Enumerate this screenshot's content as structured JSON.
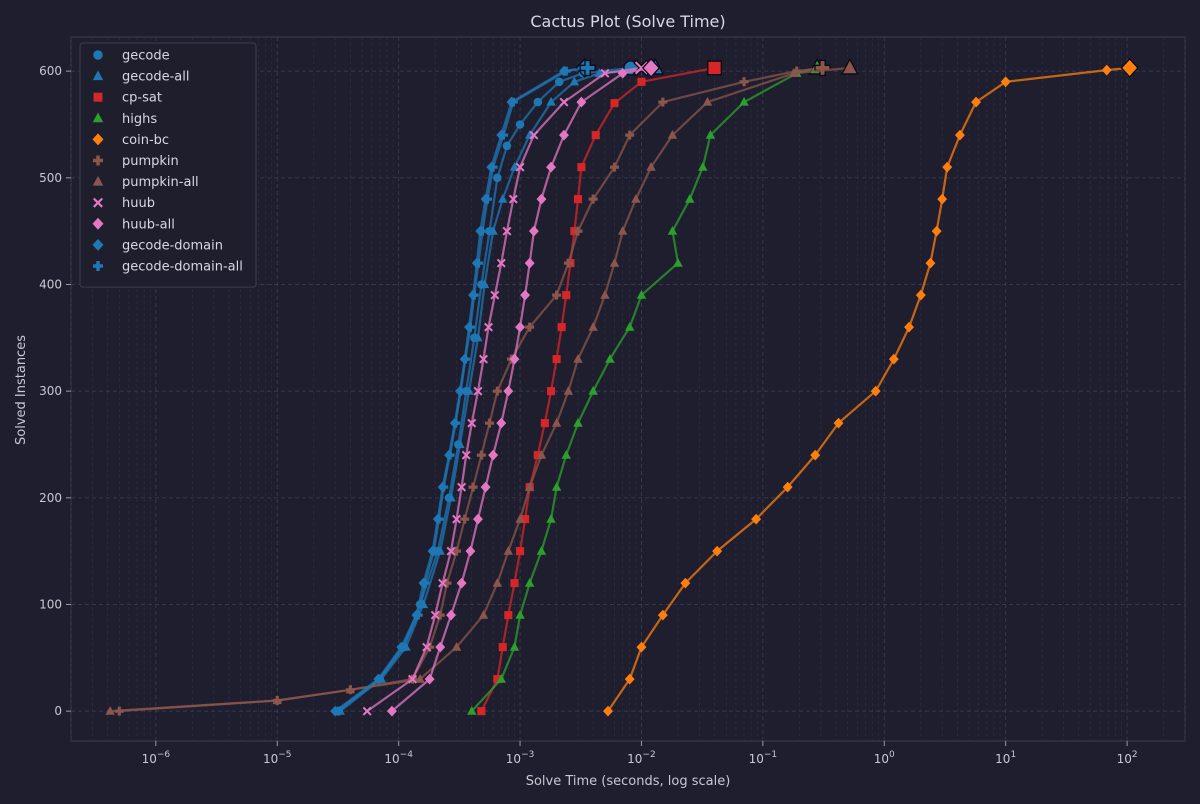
{
  "chart_data": {
    "type": "line",
    "title": "Cactus Plot (Solve Time)",
    "xlabel": "Solve Time (seconds, log scale)",
    "ylabel": "Solved Instances",
    "xscale": "log",
    "xlim": [
      2e-07,
      300
    ],
    "ylim": [
      -28,
      632
    ],
    "xticks": [
      {
        "value": 1e-06,
        "base": "10",
        "exp": "−6"
      },
      {
        "value": 1e-05,
        "base": "10",
        "exp": "−5"
      },
      {
        "value": 0.0001,
        "base": "10",
        "exp": "−4"
      },
      {
        "value": 0.001,
        "base": "10",
        "exp": "−3"
      },
      {
        "value": 0.01,
        "base": "10",
        "exp": "−2"
      },
      {
        "value": 0.1,
        "base": "10",
        "exp": "−1"
      },
      {
        "value": 1,
        "base": "10",
        "exp": "0"
      },
      {
        "value": 10,
        "base": "10",
        "exp": "1"
      },
      {
        "value": 100,
        "base": "10",
        "exp": "2"
      }
    ],
    "yticks": [
      0,
      100,
      200,
      300,
      400,
      500,
      600
    ],
    "grid": true,
    "legend_position": "top-left",
    "series": [
      {
        "name": "gecode",
        "color": "#1f77b4",
        "marker": "circle",
        "points": [
          [
            3.1e-05,
            0
          ],
          [
            7e-05,
            30
          ],
          [
            0.00011,
            60
          ],
          [
            0.00015,
            100
          ],
          [
            0.00021,
            150
          ],
          [
            0.00026,
            200
          ],
          [
            0.00031,
            250
          ],
          [
            0.00036,
            300
          ],
          [
            0.00042,
            350
          ],
          [
            0.00048,
            400
          ],
          [
            0.00056,
            450
          ],
          [
            0.00065,
            500
          ],
          [
            0.00078,
            530
          ],
          [
            0.001,
            550
          ],
          [
            0.0014,
            571
          ],
          [
            0.0021,
            590
          ],
          [
            0.0033,
            598
          ],
          [
            0.0082,
            603
          ]
        ]
      },
      {
        "name": "gecode-all",
        "color": "#1f77b4",
        "marker": "triangle",
        "points": [
          [
            3.3e-05,
            0
          ],
          [
            7.2e-05,
            30
          ],
          [
            0.000115,
            60
          ],
          [
            0.00016,
            100
          ],
          [
            0.00022,
            150
          ],
          [
            0.00027,
            200
          ],
          [
            0.00032,
            250
          ],
          [
            0.00038,
            300
          ],
          [
            0.00045,
            350
          ],
          [
            0.00051,
            400
          ],
          [
            0.0006,
            450
          ],
          [
            0.00072,
            480
          ],
          [
            0.0009,
            510
          ],
          [
            0.0012,
            540
          ],
          [
            0.0018,
            571
          ],
          [
            0.0028,
            590
          ],
          [
            0.0045,
            598
          ],
          [
            0.013,
            603
          ]
        ]
      },
      {
        "name": "cp-sat",
        "color": "#d62728",
        "marker": "square",
        "points": [
          [
            0.00048,
            0
          ],
          [
            0.00065,
            30
          ],
          [
            0.00072,
            60
          ],
          [
            0.0008,
            90
          ],
          [
            0.0009,
            120
          ],
          [
            0.001,
            150
          ],
          [
            0.0011,
            180
          ],
          [
            0.0012,
            210
          ],
          [
            0.0014,
            240
          ],
          [
            0.0016,
            270
          ],
          [
            0.0018,
            300
          ],
          [
            0.002,
            330
          ],
          [
            0.0022,
            360
          ],
          [
            0.0024,
            390
          ],
          [
            0.0026,
            420
          ],
          [
            0.0028,
            450
          ],
          [
            0.003,
            480
          ],
          [
            0.0032,
            510
          ],
          [
            0.0042,
            540
          ],
          [
            0.006,
            570
          ],
          [
            0.01,
            590
          ],
          [
            0.04,
            603
          ]
        ]
      },
      {
        "name": "highs",
        "color": "#2ca02c",
        "marker": "triangle",
        "points": [
          [
            0.0004,
            0
          ],
          [
            0.0007,
            30
          ],
          [
            0.0009,
            60
          ],
          [
            0.001,
            90
          ],
          [
            0.0012,
            120
          ],
          [
            0.0015,
            150
          ],
          [
            0.0018,
            180
          ],
          [
            0.002,
            210
          ],
          [
            0.0024,
            240
          ],
          [
            0.003,
            270
          ],
          [
            0.004,
            300
          ],
          [
            0.0055,
            330
          ],
          [
            0.008,
            360
          ],
          [
            0.01,
            390
          ],
          [
            0.02,
            420
          ],
          [
            0.018,
            450
          ],
          [
            0.025,
            480
          ],
          [
            0.032,
            510
          ],
          [
            0.037,
            540
          ],
          [
            0.07,
            571
          ],
          [
            0.19,
            598
          ],
          [
            0.28,
            603
          ]
        ]
      },
      {
        "name": "coin-bc",
        "color": "#ff7f0e",
        "marker": "diamond",
        "points": [
          [
            0.0053,
            0
          ],
          [
            0.008,
            30
          ],
          [
            0.01,
            60
          ],
          [
            0.015,
            90
          ],
          [
            0.023,
            120
          ],
          [
            0.042,
            150
          ],
          [
            0.088,
            180
          ],
          [
            0.16,
            210
          ],
          [
            0.27,
            240
          ],
          [
            0.42,
            270
          ],
          [
            0.85,
            300
          ],
          [
            1.2,
            330
          ],
          [
            1.6,
            360
          ],
          [
            2.0,
            390
          ],
          [
            2.4,
            420
          ],
          [
            2.7,
            450
          ],
          [
            3.0,
            480
          ],
          [
            3.3,
            510
          ],
          [
            4.2,
            540
          ],
          [
            5.7,
            571
          ],
          [
            10.0,
            590
          ],
          [
            68.0,
            601
          ],
          [
            105.0,
            603
          ]
        ]
      },
      {
        "name": "pumpkin",
        "color": "#8c564b",
        "marker": "plus",
        "points": [
          [
            5e-07,
            0
          ],
          [
            1e-05,
            10
          ],
          [
            4e-05,
            20
          ],
          [
            0.00013,
            30
          ],
          [
            0.00018,
            60
          ],
          [
            0.00022,
            90
          ],
          [
            0.00025,
            120
          ],
          [
            0.0003,
            150
          ],
          [
            0.00035,
            180
          ],
          [
            0.00041,
            210
          ],
          [
            0.00048,
            240
          ],
          [
            0.00056,
            270
          ],
          [
            0.00065,
            300
          ],
          [
            0.00085,
            330
          ],
          [
            0.0012,
            360
          ],
          [
            0.002,
            390
          ],
          [
            0.0025,
            420
          ],
          [
            0.003,
            450
          ],
          [
            0.004,
            480
          ],
          [
            0.006,
            510
          ],
          [
            0.008,
            540
          ],
          [
            0.015,
            571
          ],
          [
            0.07,
            590
          ],
          [
            0.19,
            600
          ],
          [
            0.31,
            603
          ]
        ]
      },
      {
        "name": "pumpkin-all",
        "color": "#8c564b",
        "marker": "triangle",
        "points": [
          [
            4.2e-07,
            0
          ],
          [
            1e-05,
            10
          ],
          [
            4e-05,
            20
          ],
          [
            0.00015,
            30
          ],
          [
            0.0003,
            60
          ],
          [
            0.0005,
            90
          ],
          [
            0.00065,
            120
          ],
          [
            0.0008,
            150
          ],
          [
            0.001,
            180
          ],
          [
            0.0012,
            210
          ],
          [
            0.0015,
            240
          ],
          [
            0.002,
            270
          ],
          [
            0.0025,
            300
          ],
          [
            0.003,
            330
          ],
          [
            0.004,
            360
          ],
          [
            0.005,
            390
          ],
          [
            0.006,
            420
          ],
          [
            0.007,
            450
          ],
          [
            0.009,
            480
          ],
          [
            0.012,
            510
          ],
          [
            0.018,
            540
          ],
          [
            0.035,
            571
          ],
          [
            0.18,
            598
          ],
          [
            0.52,
            603
          ]
        ]
      },
      {
        "name": "huub",
        "color": "#e377c2",
        "marker": "x",
        "points": [
          [
            5.5e-05,
            0
          ],
          [
            0.00013,
            30
          ],
          [
            0.00017,
            60
          ],
          [
            0.0002,
            90
          ],
          [
            0.00023,
            120
          ],
          [
            0.00027,
            150
          ],
          [
            0.0003,
            180
          ],
          [
            0.00033,
            210
          ],
          [
            0.00036,
            240
          ],
          [
            0.0004,
            270
          ],
          [
            0.00045,
            300
          ],
          [
            0.0005,
            330
          ],
          [
            0.00055,
            360
          ],
          [
            0.00062,
            390
          ],
          [
            0.0007,
            420
          ],
          [
            0.00078,
            450
          ],
          [
            0.00088,
            480
          ],
          [
            0.001,
            510
          ],
          [
            0.0013,
            540
          ],
          [
            0.0023,
            571
          ],
          [
            0.005,
            598
          ],
          [
            0.01,
            603
          ]
        ]
      },
      {
        "name": "huub-all",
        "color": "#e377c2",
        "marker": "diamond",
        "points": [
          [
            8.8e-05,
            0
          ],
          [
            0.00018,
            30
          ],
          [
            0.00022,
            60
          ],
          [
            0.00027,
            90
          ],
          [
            0.00033,
            120
          ],
          [
            0.00039,
            150
          ],
          [
            0.00045,
            180
          ],
          [
            0.00052,
            210
          ],
          [
            0.0006,
            240
          ],
          [
            0.0007,
            270
          ],
          [
            0.0008,
            300
          ],
          [
            0.0009,
            330
          ],
          [
            0.001,
            360
          ],
          [
            0.0011,
            390
          ],
          [
            0.0012,
            420
          ],
          [
            0.0013,
            450
          ],
          [
            0.0015,
            480
          ],
          [
            0.0018,
            510
          ],
          [
            0.0023,
            540
          ],
          [
            0.0032,
            571
          ],
          [
            0.007,
            598
          ],
          [
            0.012,
            603
          ]
        ]
      },
      {
        "name": "gecode-domain",
        "color": "#1f77b4",
        "marker": "diamond",
        "points": [
          [
            3e-05,
            0
          ],
          [
            6.8e-05,
            30
          ],
          [
            0.000105,
            60
          ],
          [
            0.00014,
            90
          ],
          [
            0.00016,
            120
          ],
          [
            0.00019,
            150
          ],
          [
            0.00021,
            180
          ],
          [
            0.00023,
            210
          ],
          [
            0.00026,
            240
          ],
          [
            0.00029,
            270
          ],
          [
            0.00032,
            300
          ],
          [
            0.00035,
            330
          ],
          [
            0.00038,
            360
          ],
          [
            0.00041,
            390
          ],
          [
            0.00044,
            420
          ],
          [
            0.00047,
            450
          ],
          [
            0.00052,
            480
          ],
          [
            0.00058,
            510
          ],
          [
            0.0007,
            540
          ],
          [
            0.00085,
            571
          ],
          [
            0.0023,
            600
          ],
          [
            0.0034,
            603
          ]
        ]
      },
      {
        "name": "gecode-domain-all",
        "color": "#1f77b4",
        "marker": "plus",
        "points": [
          [
            3.2e-05,
            0
          ],
          [
            6.9e-05,
            30
          ],
          [
            0.000108,
            60
          ],
          [
            0.000145,
            90
          ],
          [
            0.000165,
            120
          ],
          [
            0.000195,
            150
          ],
          [
            0.000215,
            180
          ],
          [
            0.000235,
            210
          ],
          [
            0.000265,
            240
          ],
          [
            0.000295,
            270
          ],
          [
            0.000325,
            300
          ],
          [
            0.000355,
            330
          ],
          [
            0.00039,
            360
          ],
          [
            0.00042,
            390
          ],
          [
            0.000455,
            420
          ],
          [
            0.00049,
            450
          ],
          [
            0.00054,
            480
          ],
          [
            0.0006,
            510
          ],
          [
            0.00073,
            540
          ],
          [
            0.00088,
            571
          ],
          [
            0.0024,
            600
          ],
          [
            0.0036,
            603
          ]
        ]
      }
    ]
  }
}
